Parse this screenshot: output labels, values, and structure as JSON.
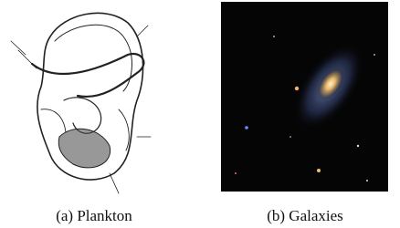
{
  "figures": [
    {
      "caption": "(a) Plankton"
    },
    {
      "caption": "(b) Galaxies"
    }
  ]
}
